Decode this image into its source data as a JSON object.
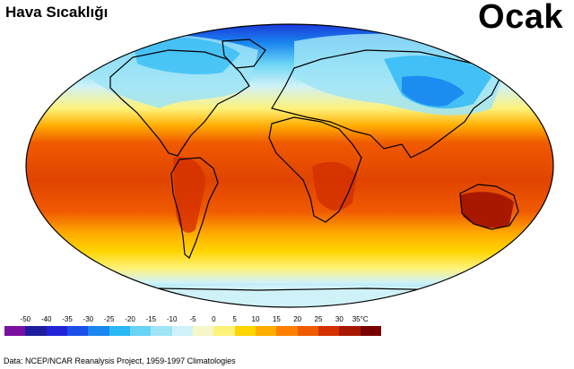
{
  "title": "Hava Sıcaklığı",
  "month": "Ocak",
  "legend": {
    "unit": "°C",
    "ticks": [
      "-50",
      "-40",
      "-35",
      "-30",
      "-25",
      "-20",
      "-15",
      "-10",
      "-5",
      "0",
      "5",
      "10",
      "15",
      "20",
      "25",
      "30",
      "35°C"
    ],
    "colors": [
      "#7a0fa0",
      "#1e1e9c",
      "#2222d8",
      "#1b4fe8",
      "#1a86f0",
      "#2ab8f5",
      "#69d3f5",
      "#9fe4f7",
      "#cff2f8",
      "#f5f7c8",
      "#fff27a",
      "#ffd400",
      "#ffad00",
      "#ff8000",
      "#f05a00",
      "#d43000",
      "#a81800",
      "#780000"
    ]
  },
  "credit": "Data:  NCEP/NCAR Reanalysis Project, 1959-1997 Climatologies"
}
